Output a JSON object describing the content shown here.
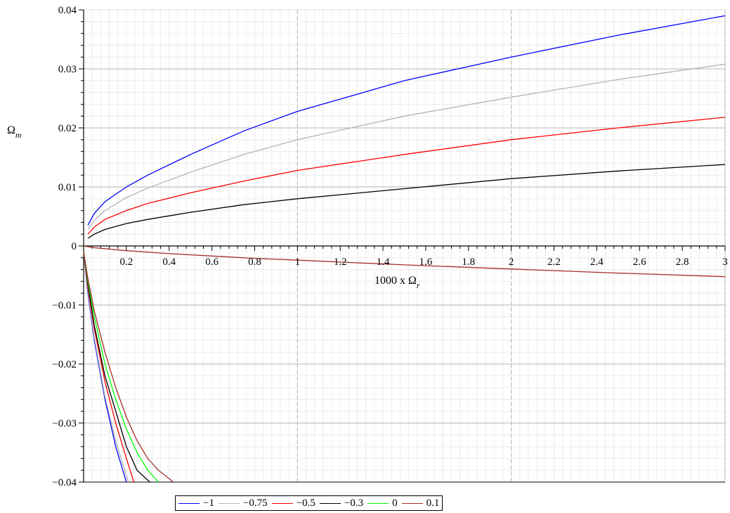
{
  "chart_data": {
    "type": "line",
    "title": "",
    "xlabel": "1000 x Ω",
    "xlabel_subscript": "r",
    "ylabel": "Ω",
    "ylabel_subscript": "m",
    "xlim": [
      0,
      3
    ],
    "ylim": [
      -0.04,
      0.04
    ],
    "x_ticks": [
      0.2,
      0.4,
      0.6,
      0.8,
      1,
      1.2,
      1.4,
      1.6,
      1.8,
      2,
      2.2,
      2.4,
      2.6,
      2.8,
      3
    ],
    "x_tick_labels": [
      "0.2",
      "0.4",
      "0.6",
      "0.8",
      "1",
      "1.2",
      "1.4",
      "1.6",
      "1.8",
      "2",
      "2.2",
      "2.4",
      "2.6",
      "2.8",
      "3"
    ],
    "y_ticks": [
      -0.04,
      -0.03,
      -0.02,
      -0.01,
      0,
      0.01,
      0.02,
      0.03,
      0.04
    ],
    "y_tick_labels": [
      "−0.04",
      "−0.03",
      "−0.02",
      "−0.01",
      "0",
      "0.01",
      "0.02",
      "0.03",
      "0.04"
    ],
    "grid": true,
    "legend_position": "bottom",
    "series": [
      {
        "name": "−1",
        "color": "#0000ff",
        "upper": [
          [
            0.02,
            0.0035
          ],
          [
            0.05,
            0.0055
          ],
          [
            0.1,
            0.0075
          ],
          [
            0.2,
            0.01
          ],
          [
            0.3,
            0.012
          ],
          [
            0.5,
            0.0155
          ],
          [
            0.75,
            0.0195
          ],
          [
            1.0,
            0.0228
          ],
          [
            1.5,
            0.028
          ],
          [
            2.0,
            0.032
          ],
          [
            2.5,
            0.0357
          ],
          [
            3.0,
            0.039
          ]
        ],
        "lower": [
          [
            0.0,
            -0.001
          ],
          [
            0.02,
            -0.008
          ],
          [
            0.05,
            -0.016
          ],
          [
            0.1,
            -0.026
          ],
          [
            0.15,
            -0.034
          ],
          [
            0.2,
            -0.04
          ]
        ]
      },
      {
        "name": "−0.75",
        "color": "#b4b4b4",
        "upper": [
          [
            0.02,
            0.0028
          ],
          [
            0.05,
            0.0043
          ],
          [
            0.1,
            0.006
          ],
          [
            0.2,
            0.0082
          ],
          [
            0.3,
            0.0098
          ],
          [
            0.5,
            0.0125
          ],
          [
            0.75,
            0.0155
          ],
          [
            1.0,
            0.018
          ],
          [
            1.5,
            0.022
          ],
          [
            2.0,
            0.0252
          ],
          [
            2.5,
            0.0282
          ],
          [
            3.0,
            0.0308
          ]
        ],
        "lower": [
          [
            0.0,
            -0.001
          ],
          [
            0.02,
            -0.0075
          ],
          [
            0.05,
            -0.0155
          ],
          [
            0.1,
            -0.0255
          ],
          [
            0.15,
            -0.033
          ],
          [
            0.21,
            -0.04
          ]
        ]
      },
      {
        "name": "−0.5",
        "color": "#ff0000",
        "upper": [
          [
            0.02,
            0.002
          ],
          [
            0.05,
            0.0032
          ],
          [
            0.1,
            0.0045
          ],
          [
            0.2,
            0.006
          ],
          [
            0.3,
            0.0072
          ],
          [
            0.5,
            0.009
          ],
          [
            0.75,
            0.011
          ],
          [
            1.0,
            0.0128
          ],
          [
            1.5,
            0.0155
          ],
          [
            2.0,
            0.018
          ],
          [
            2.5,
            0.02
          ],
          [
            3.0,
            0.0218
          ]
        ],
        "lower": [
          [
            0.0,
            -0.001
          ],
          [
            0.02,
            -0.007
          ],
          [
            0.05,
            -0.014
          ],
          [
            0.1,
            -0.023
          ],
          [
            0.15,
            -0.03
          ],
          [
            0.2,
            -0.036
          ],
          [
            0.235,
            -0.04
          ]
        ]
      },
      {
        "name": "−0.3",
        "color": "#000000",
        "upper": [
          [
            0.02,
            0.0013
          ],
          [
            0.05,
            0.002
          ],
          [
            0.1,
            0.0028
          ],
          [
            0.2,
            0.0038
          ],
          [
            0.3,
            0.0045
          ],
          [
            0.5,
            0.0057
          ],
          [
            0.75,
            0.007
          ],
          [
            1.0,
            0.008
          ],
          [
            1.5,
            0.0097
          ],
          [
            2.0,
            0.0114
          ],
          [
            2.5,
            0.0127
          ],
          [
            3.0,
            0.0138
          ]
        ],
        "lower": [
          [
            0.0,
            -0.001
          ],
          [
            0.02,
            -0.0065
          ],
          [
            0.05,
            -0.0135
          ],
          [
            0.1,
            -0.022
          ],
          [
            0.15,
            -0.028
          ],
          [
            0.2,
            -0.034
          ],
          [
            0.25,
            -0.038
          ],
          [
            0.31,
            -0.04
          ]
        ]
      },
      {
        "name": "0",
        "color": "#00ff00",
        "upper": [],
        "lower": [
          [
            0.0,
            -0.001
          ],
          [
            0.02,
            -0.006
          ],
          [
            0.05,
            -0.012
          ],
          [
            0.1,
            -0.02
          ],
          [
            0.15,
            -0.026
          ],
          [
            0.2,
            -0.031
          ],
          [
            0.25,
            -0.035
          ],
          [
            0.3,
            -0.038
          ],
          [
            0.35,
            -0.04
          ]
        ]
      },
      {
        "name": "0.1",
        "color": "#a52a2a",
        "upper": [
          [
            0.0,
            0.0
          ],
          [
            0.05,
            -0.0003
          ],
          [
            0.2,
            -0.0008
          ],
          [
            0.4,
            -0.0013
          ],
          [
            0.6,
            -0.0017
          ],
          [
            0.8,
            -0.0021
          ],
          [
            1.0,
            -0.0024
          ],
          [
            1.5,
            -0.0032
          ],
          [
            2.0,
            -0.0039
          ],
          [
            2.5,
            -0.0046
          ],
          [
            3.0,
            -0.0052
          ]
        ],
        "lower": [
          [
            0.0,
            -0.001
          ],
          [
            0.02,
            -0.0055
          ],
          [
            0.05,
            -0.011
          ],
          [
            0.1,
            -0.018
          ],
          [
            0.15,
            -0.024
          ],
          [
            0.2,
            -0.029
          ],
          [
            0.25,
            -0.033
          ],
          [
            0.3,
            -0.036
          ],
          [
            0.35,
            -0.038
          ],
          [
            0.42,
            -0.04
          ]
        ]
      }
    ]
  }
}
